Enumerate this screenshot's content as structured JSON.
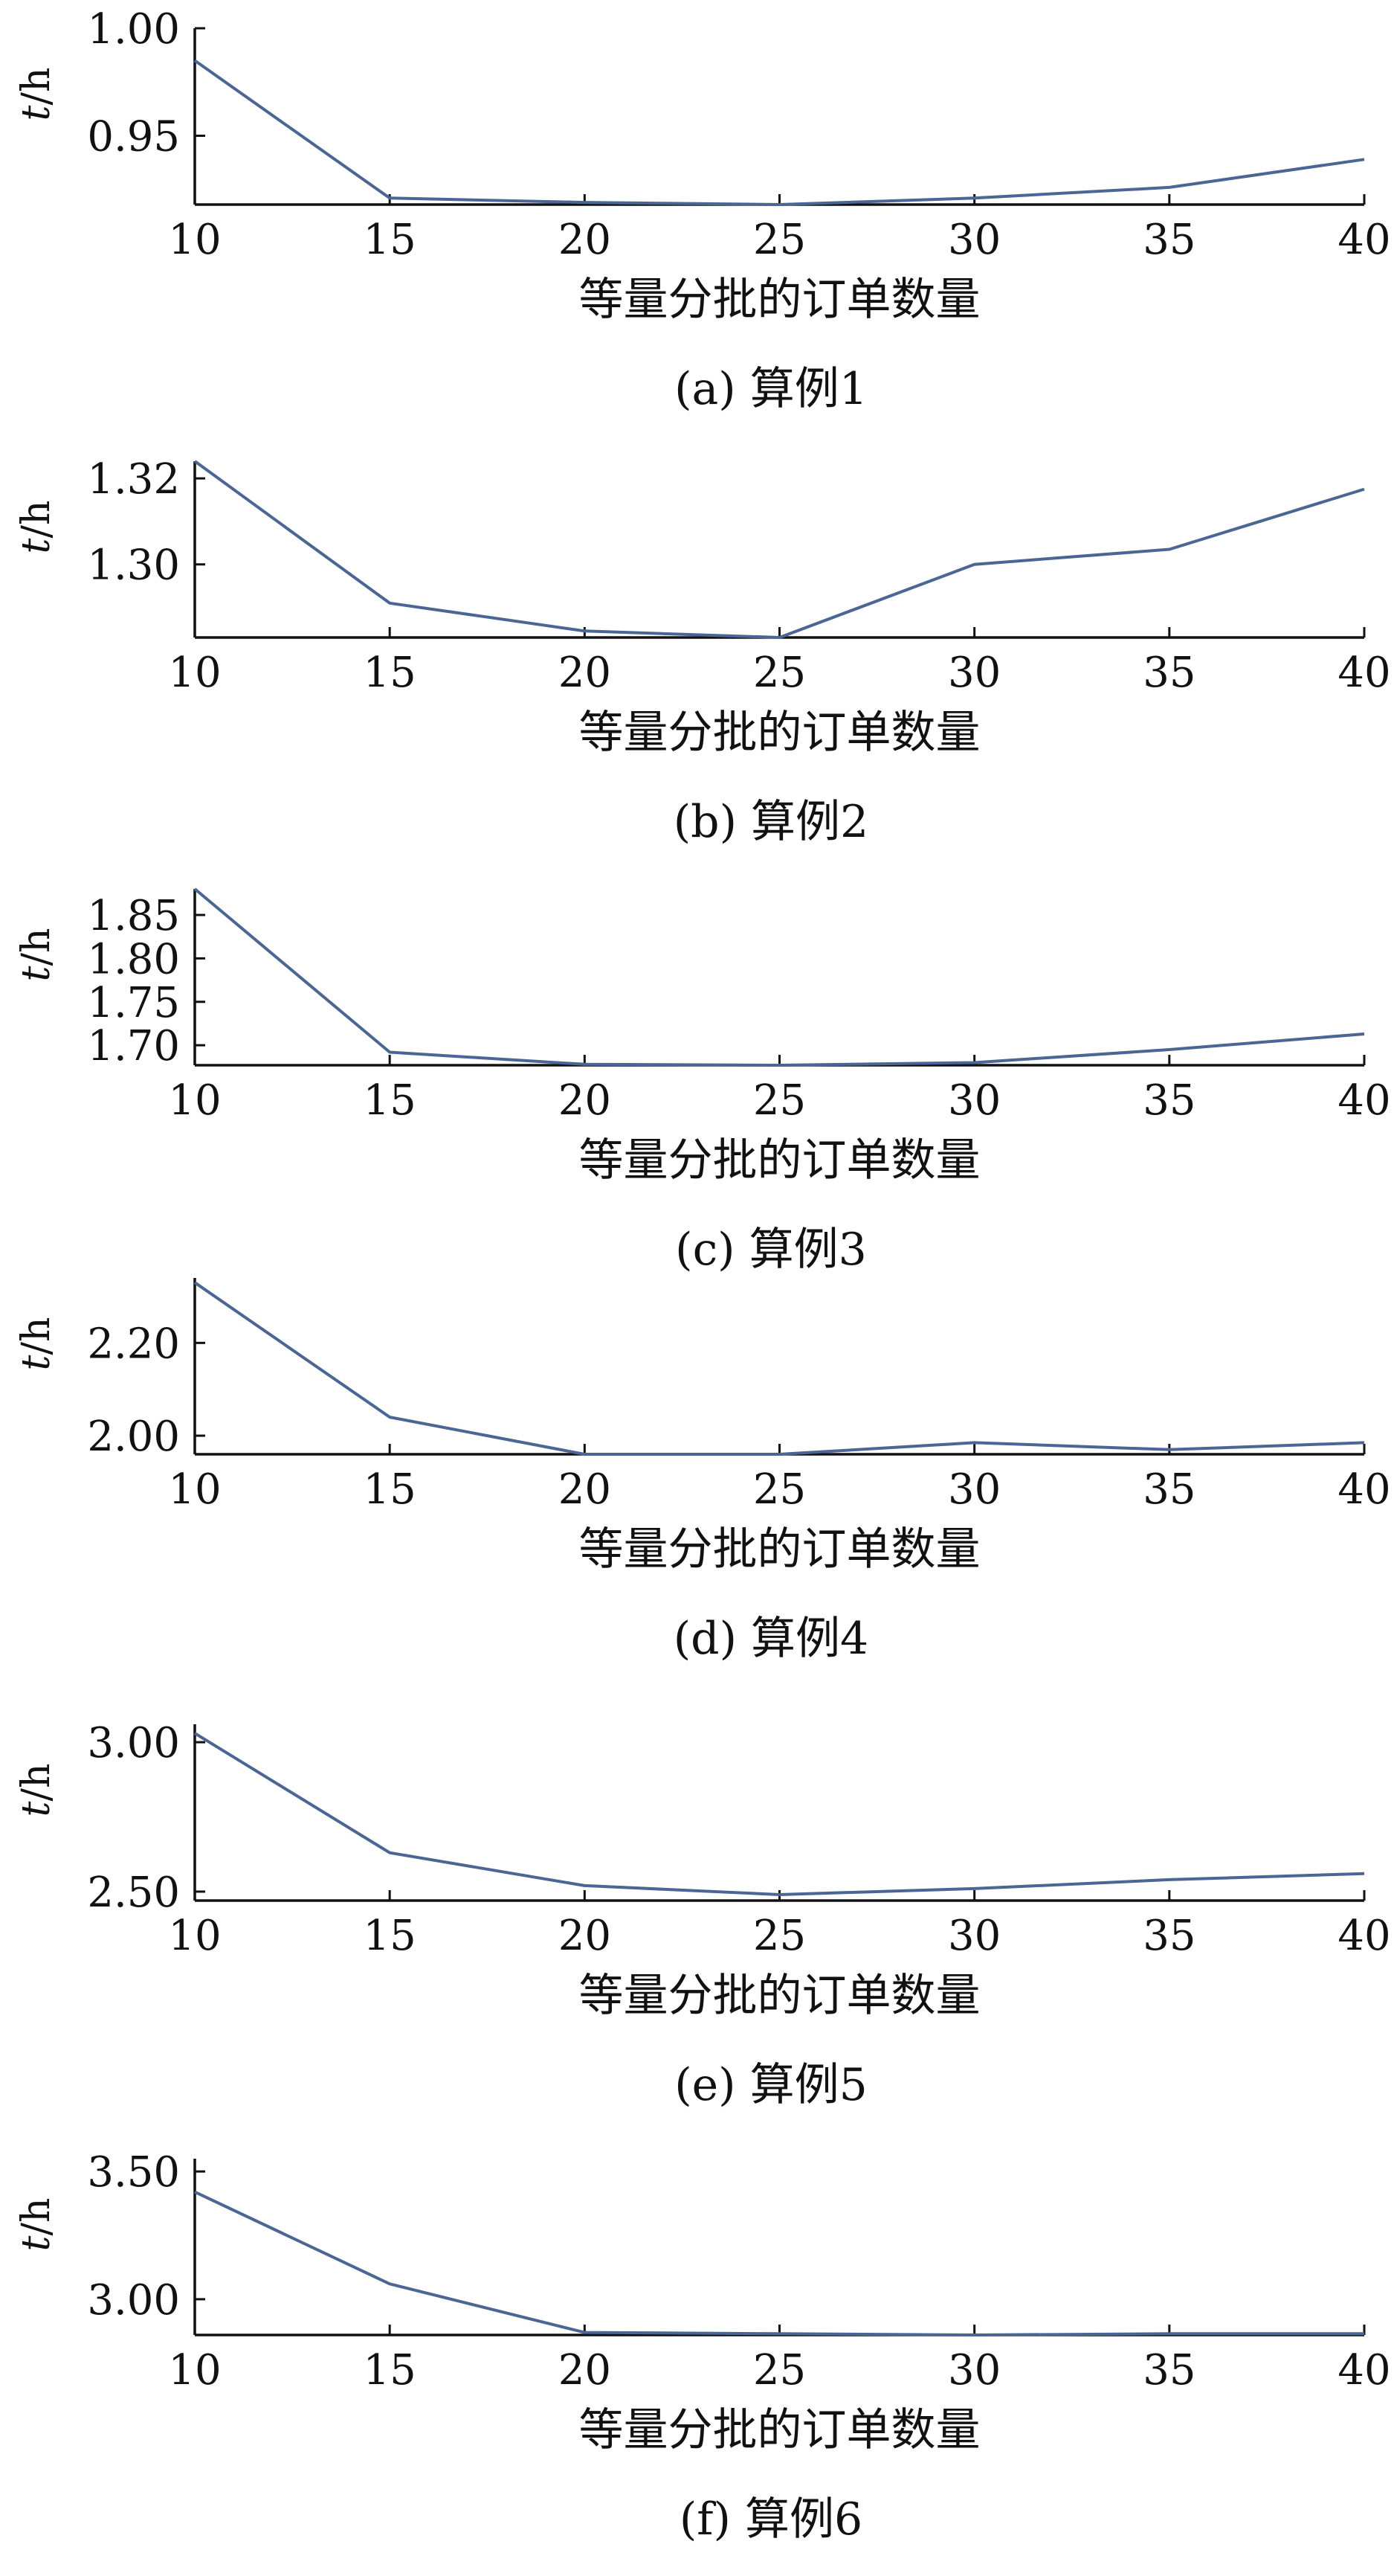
{
  "figure": {
    "line_color": "#4a6694",
    "axis_color": "#111111"
  },
  "chart_data": [
    {
      "type": "line",
      "caption": "(a) 算例1",
      "xlabel": "等量分批的订单数量",
      "ylabel": "t/h",
      "x": [
        10,
        15,
        20,
        25,
        30,
        35,
        40
      ],
      "x_ticks": [
        "10",
        "15",
        "20",
        "25",
        "30",
        "35",
        "40"
      ],
      "y": [
        0.985,
        0.921,
        0.919,
        0.918,
        0.921,
        0.926,
        0.939
      ],
      "ylim": [
        0.918,
        1.0
      ],
      "y_ticks": [
        "0.95",
        "1.00"
      ],
      "y_tick_values": [
        0.95,
        1.0
      ],
      "grid": false
    },
    {
      "type": "line",
      "caption": "(b) 算例2",
      "xlabel": "等量分批的订单数量",
      "ylabel": "t/h",
      "x": [
        10,
        15,
        20,
        25,
        30,
        35,
        40
      ],
      "x_ticks": [
        "10",
        "15",
        "20",
        "25",
        "30",
        "35",
        "40"
      ],
      "y": [
        1.324,
        1.291,
        1.2845,
        1.283,
        1.3,
        1.3035,
        1.3175
      ],
      "ylim": [
        1.283,
        1.324
      ],
      "y_ticks": [
        "1.30",
        "1.32"
      ],
      "y_tick_values": [
        1.3,
        1.32
      ],
      "grid": false
    },
    {
      "type": "line",
      "caption": "(c) 算例3",
      "xlabel": "等量分批的订单数量",
      "ylabel": "t/h",
      "x": [
        10,
        15,
        20,
        25,
        30,
        35,
        40
      ],
      "x_ticks": [
        "10",
        "15",
        "20",
        "25",
        "30",
        "35",
        "40"
      ],
      "y": [
        1.88,
        1.692,
        1.678,
        1.677,
        1.68,
        1.695,
        1.713
      ],
      "ylim": [
        1.677,
        1.88
      ],
      "y_ticks": [
        "1.70",
        "1.75",
        "1.80",
        "1.85"
      ],
      "y_tick_values": [
        1.7,
        1.75,
        1.8,
        1.85
      ],
      "grid": false
    },
    {
      "type": "line",
      "caption": "(d) 算例4",
      "xlabel": "等量分批的订单数量",
      "ylabel": "t/h",
      "x": [
        10,
        15,
        20,
        25,
        30,
        35,
        40
      ],
      "x_ticks": [
        "10",
        "15",
        "20",
        "25",
        "30",
        "35",
        "40"
      ],
      "y": [
        2.33,
        2.04,
        1.96,
        1.96,
        1.985,
        1.97,
        1.985
      ],
      "ylim": [
        1.96,
        2.34
      ],
      "y_ticks": [
        "2.00",
        "2.20"
      ],
      "y_tick_values": [
        2.0,
        2.2
      ],
      "grid": false
    },
    {
      "type": "line",
      "caption": "(e) 算例5",
      "xlabel": "等量分批的订单数量",
      "ylabel": "t/h",
      "x": [
        10,
        15,
        20,
        25,
        30,
        35,
        40
      ],
      "x_ticks": [
        "10",
        "15",
        "20",
        "25",
        "30",
        "35",
        "40"
      ],
      "y": [
        3.03,
        2.63,
        2.52,
        2.49,
        2.51,
        2.54,
        2.56
      ],
      "ylim": [
        2.47,
        3.06
      ],
      "y_ticks": [
        "2.50",
        "3.00"
      ],
      "y_tick_values": [
        2.5,
        3.0
      ],
      "grid": false
    },
    {
      "type": "line",
      "caption": "(f) 算例6",
      "xlabel": "等量分批的订单数量",
      "ylabel": "t/h",
      "x": [
        10,
        15,
        20,
        25,
        30,
        35,
        40
      ],
      "x_ticks": [
        "10",
        "15",
        "20",
        "25",
        "30",
        "35",
        "40"
      ],
      "y": [
        3.42,
        3.06,
        2.87,
        2.865,
        2.86,
        2.865,
        2.865
      ],
      "ylim": [
        2.86,
        3.55
      ],
      "y_ticks": [
        "3.00",
        "3.50"
      ],
      "y_tick_values": [
        3.0,
        3.5
      ],
      "grid": false
    }
  ]
}
